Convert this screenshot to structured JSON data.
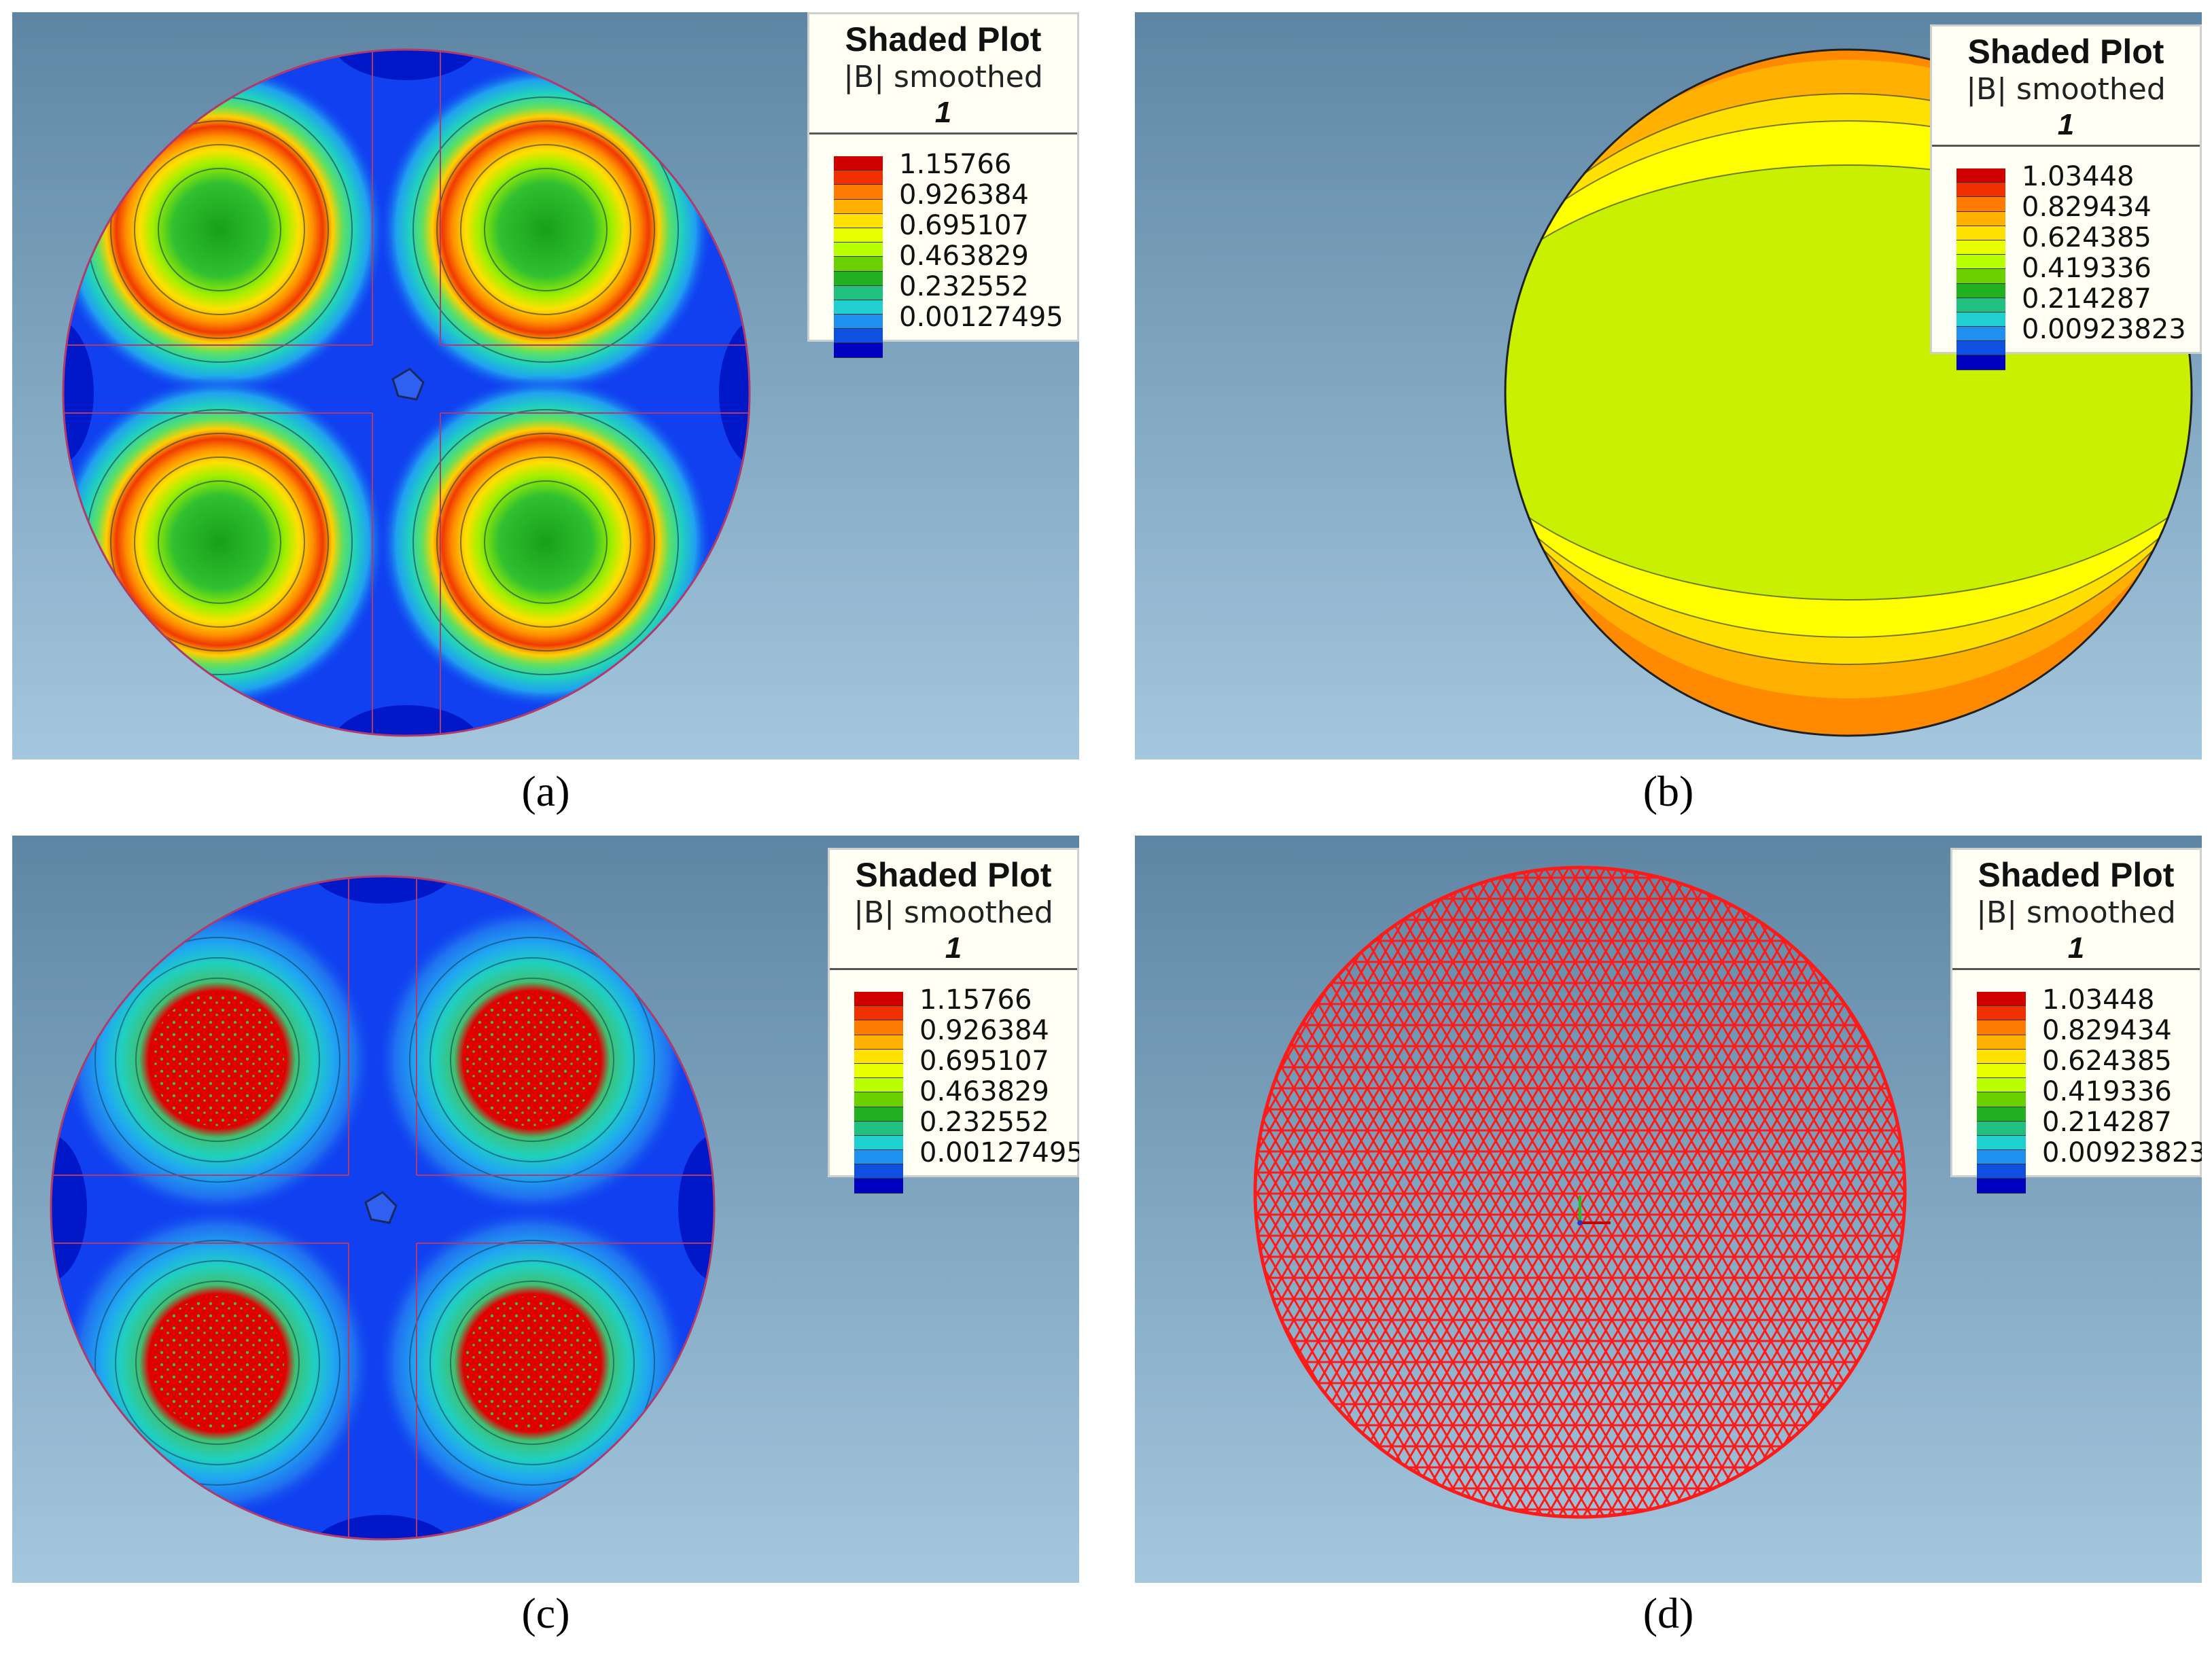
{
  "legend_common": {
    "title": "Shaded Plot",
    "subtitle": "|B| smoothed",
    "index": "1"
  },
  "panels": [
    {
      "caption": "(a)",
      "values": [
        "1.15766",
        "0.926384",
        "0.695107",
        "0.463829",
        "0.232552",
        "0.00127495"
      ]
    },
    {
      "caption": "(b)",
      "values": [
        "1.03448",
        "0.829434",
        "0.624385",
        "0.419336",
        "0.214287",
        "0.00923823"
      ]
    },
    {
      "caption": "(c)",
      "values": [
        "1.15766",
        "0.926384",
        "0.695107",
        "0.463829",
        "0.232552",
        "0.00127495"
      ]
    },
    {
      "caption": "(d)",
      "values": [
        "1.03448",
        "0.829434",
        "0.624385",
        "0.419336",
        "0.214287",
        "0.00923823"
      ]
    }
  ],
  "colors": {
    "scale": [
      "#d00000",
      "#f03000",
      "#ff7a00",
      "#ffb000",
      "#ffe000",
      "#e8ff00",
      "#b8ff00",
      "#6ad000",
      "#20b020",
      "#20c080",
      "#20d0d0",
      "#2090f0",
      "#1050e0",
      "#0000c0"
    ],
    "background_top": "#5e86a4",
    "background_bottom": "#a4c7de",
    "disc_blue": "#1040f0",
    "mesh_red": "#ff1a1a"
  }
}
